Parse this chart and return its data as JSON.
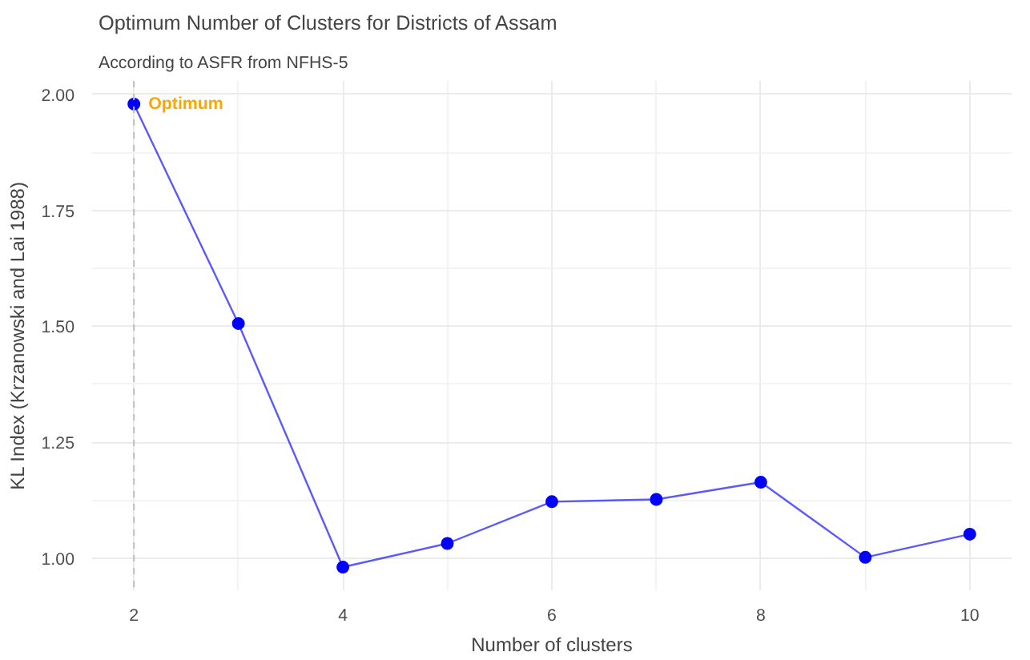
{
  "chart_data": {
    "type": "line",
    "title": "Optimum Number of Clusters for Districts of Assam",
    "subtitle": "According to ASFR from NFHS-5",
    "xlabel": "Number of clusters",
    "ylabel": "KL Index (Krzanowski and Lai 1988)",
    "x": [
      2,
      3,
      4,
      5,
      6,
      7,
      8,
      9,
      10
    ],
    "series": [
      {
        "color": "#0000ff",
        "values": [
          1.979,
          1.506,
          0.981,
          1.032,
          1.122,
          1.127,
          1.164,
          1.002,
          1.052
        ]
      }
    ],
    "xlim": [
      1.6,
      10.4
    ],
    "ylim": [
      0.931,
      2.029
    ],
    "xticks": [
      2,
      4,
      6,
      8,
      10
    ],
    "yticks": [
      {
        "value": 1.0,
        "label": "1.00"
      },
      {
        "value": 1.25,
        "label": "1.25"
      },
      {
        "value": 1.5,
        "label": "1.50"
      },
      {
        "value": 1.75,
        "label": "1.75"
      },
      {
        "value": 2.0,
        "label": "2.00"
      }
    ],
    "grid": true,
    "marker": "circle",
    "line_style": "solid",
    "ref_lines": [
      {
        "axis": "x",
        "value": 2,
        "color": "#bdbdbd",
        "line_style": "dashed"
      }
    ],
    "annotations": [
      {
        "text": "Optimum",
        "x": 2,
        "y": 1.979
      }
    ]
  }
}
